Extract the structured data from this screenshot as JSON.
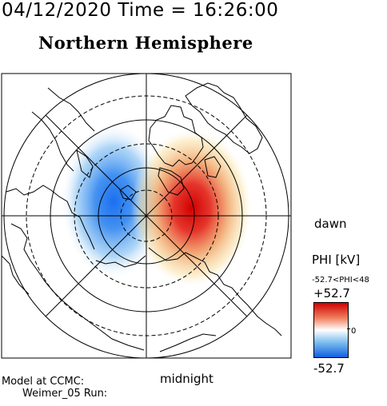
{
  "header": {
    "datetime": "04/12/2020 Time = 16:26:00",
    "hemisphere": "Northern Hemisphere"
  },
  "map": {
    "dawn_label": "dawn",
    "midnight_label": "midnight",
    "potential_cells": [
      {
        "sign": "negative",
        "color": "#1060e0",
        "side": "dusk"
      },
      {
        "sign": "positive",
        "color": "#d00000",
        "side": "dawn"
      }
    ]
  },
  "colorbar": {
    "title": "PHI [kV]",
    "range_text": "-52.7<PHI<48",
    "max_label": "+52.7",
    "zero_label": "0",
    "min_label": "-52.7",
    "colors": [
      "#d00000",
      "#ffffff",
      "#1060e0"
    ]
  },
  "footer": {
    "model_line1": "Model at CCMC:",
    "model_line2": "Weimer_05 Run:"
  }
}
